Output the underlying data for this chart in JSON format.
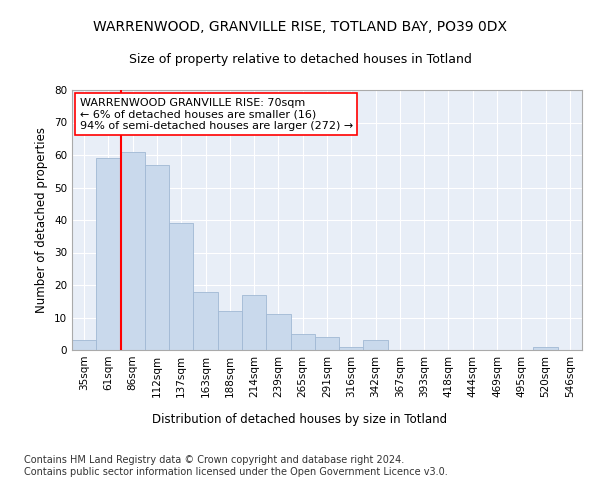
{
  "title1": "WARRENWOOD, GRANVILLE RISE, TOTLAND BAY, PO39 0DX",
  "title2": "Size of property relative to detached houses in Totland",
  "xlabel": "Distribution of detached houses by size in Totland",
  "ylabel": "Number of detached properties",
  "categories": [
    "35sqm",
    "61sqm",
    "86sqm",
    "112sqm",
    "137sqm",
    "163sqm",
    "188sqm",
    "214sqm",
    "239sqm",
    "265sqm",
    "291sqm",
    "316sqm",
    "342sqm",
    "367sqm",
    "393sqm",
    "418sqm",
    "444sqm",
    "469sqm",
    "495sqm",
    "520sqm",
    "546sqm"
  ],
  "values": [
    3,
    59,
    61,
    57,
    39,
    18,
    12,
    17,
    11,
    5,
    4,
    1,
    3,
    0,
    0,
    0,
    0,
    0,
    0,
    1,
    0
  ],
  "bar_color": "#c9d9ec",
  "bar_edge_color": "#a0b8d4",
  "vline_index": 1,
  "vline_color": "red",
  "annotation_text": "WARRENWOOD GRANVILLE RISE: 70sqm\n← 6% of detached houses are smaller (16)\n94% of semi-detached houses are larger (272) →",
  "annotation_box_color": "white",
  "annotation_box_edge": "red",
  "ylim": [
    0,
    80
  ],
  "yticks": [
    0,
    10,
    20,
    30,
    40,
    50,
    60,
    70,
    80
  ],
  "footer": "Contains HM Land Registry data © Crown copyright and database right 2024.\nContains public sector information licensed under the Open Government Licence v3.0.",
  "bg_color": "#e8eef7",
  "grid_color": "#ffffff",
  "title_fontsize": 10,
  "subtitle_fontsize": 9,
  "axis_label_fontsize": 8.5,
  "tick_fontsize": 7.5,
  "annotation_fontsize": 8,
  "footer_fontsize": 7
}
